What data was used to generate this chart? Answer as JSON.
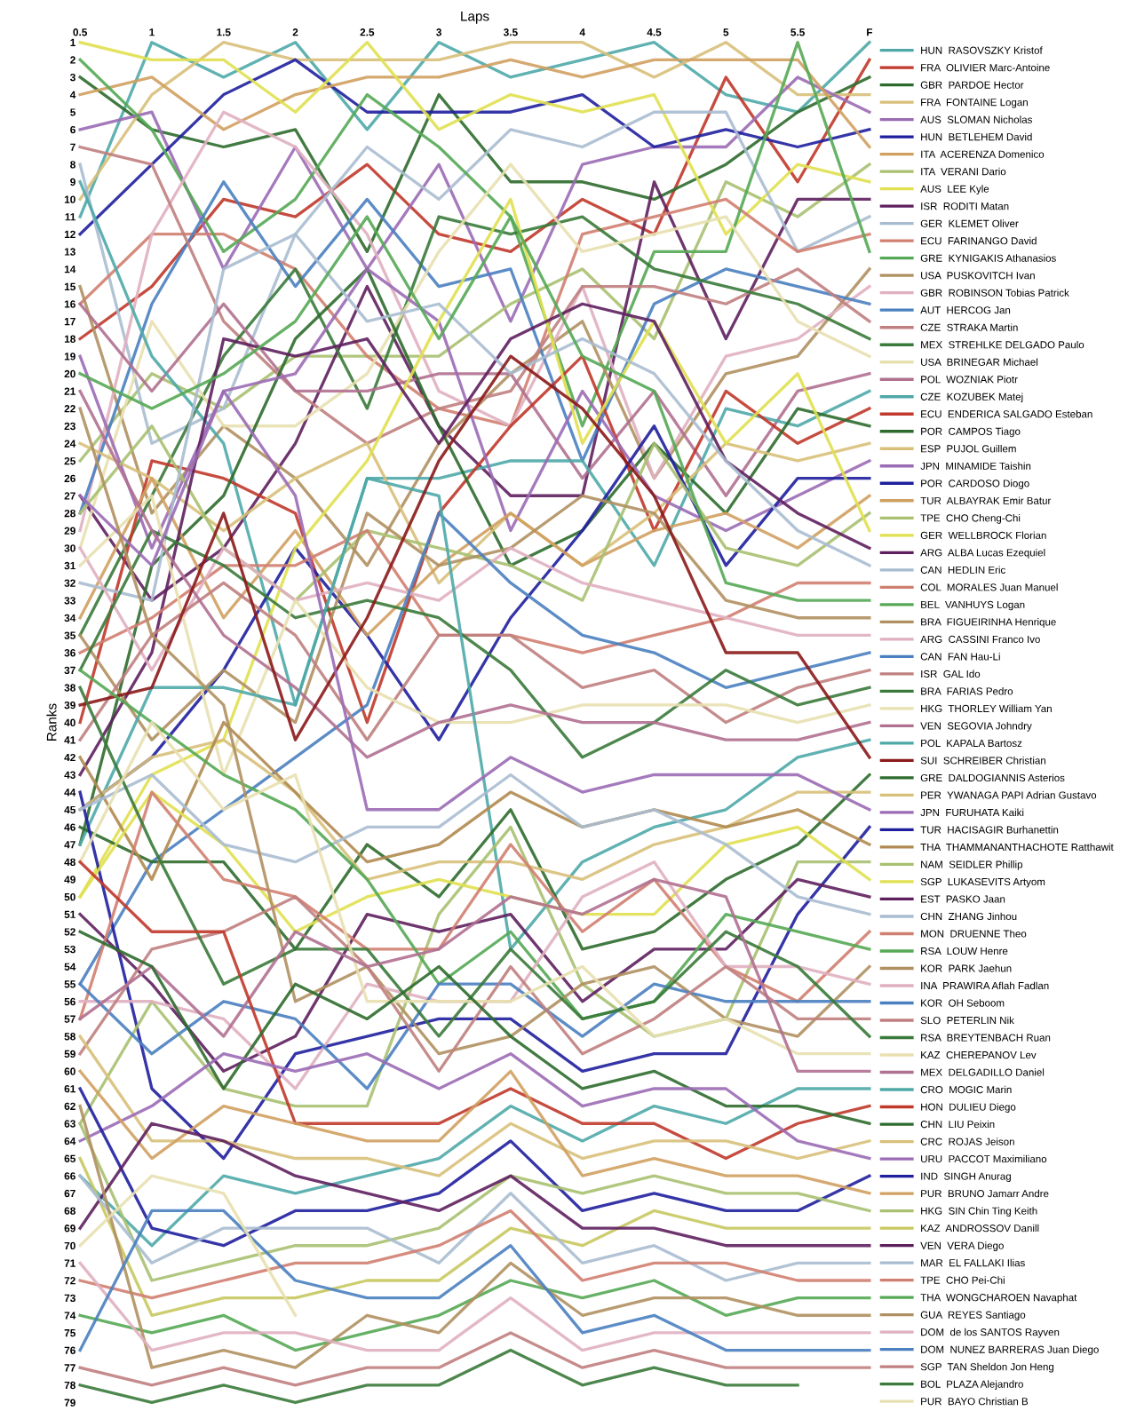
{
  "chart_data": {
    "type": "line",
    "xlabel": "Laps",
    "ylabel": "Ranks",
    "x": [
      0.5,
      1,
      1.5,
      2,
      2.5,
      3,
      3.5,
      4,
      4.5,
      5,
      5.5,
      6
    ],
    "xlim": [
      0.5,
      6
    ],
    "xticks": [
      0.5,
      1,
      1.5,
      2,
      2.5,
      3,
      3.5,
      4,
      4.5,
      5,
      5.5,
      {
        "value": 6,
        "label": "F"
      }
    ],
    "ylim": [
      79,
      1
    ],
    "yticks": [
      1,
      2,
      3,
      4,
      5,
      6,
      7,
      8,
      9,
      10,
      11,
      12,
      13,
      14,
      15,
      16,
      17,
      18,
      19,
      20,
      21,
      22,
      23,
      24,
      25,
      26,
      27,
      28,
      29,
      30,
      31,
      32,
      33,
      34,
      35,
      36,
      37,
      38,
      39,
      40,
      41,
      42,
      43,
      44,
      45,
      46,
      47,
      48,
      49,
      50,
      51,
      52,
      53,
      54,
      55,
      56,
      57,
      58,
      59,
      60,
      61,
      62,
      63,
      64,
      65,
      66,
      67,
      68,
      69,
      70,
      71,
      72,
      73,
      74,
      75,
      76,
      77,
      78,
      79
    ],
    "grid": false,
    "legend": "right",
    "marker": "none",
    "line_style": "solid",
    "series": [
      {
        "name": "HUN  RASOVSZKY Kristof",
        "color": "#4fa8a8",
        "values": [
          11,
          1,
          3,
          1,
          6,
          1,
          3,
          2,
          1,
          4,
          5,
          1
        ]
      },
      {
        "name": "FRA  OLIVIER Marc-Antoine",
        "color": "#c0392b",
        "values": [
          18,
          15,
          10,
          11,
          8,
          12,
          13,
          10,
          12,
          3,
          9,
          2
        ]
      },
      {
        "name": "GBR  PARDOE Hector",
        "color": "#2e6b2e",
        "values": [
          3,
          6,
          7,
          6,
          13,
          4,
          9,
          9,
          10,
          8,
          5,
          3
        ]
      },
      {
        "name": "FRA  FONTAINE Logan",
        "color": "#d8c07a",
        "values": [
          10,
          4,
          1,
          2,
          2,
          2,
          1,
          1,
          3,
          1,
          4,
          4
        ]
      },
      {
        "name": "AUS  SLOMAN Nicholas",
        "color": "#9b6bb5",
        "values": [
          6,
          5,
          14,
          7,
          14,
          8,
          17,
          8,
          7,
          7,
          3,
          5
        ]
      },
      {
        "name": "HUN  BETLEHEM David",
        "color": "#1f1f9e",
        "values": [
          12,
          8,
          4,
          2,
          5,
          5,
          5,
          4,
          7,
          6,
          7,
          6
        ]
      },
      {
        "name": "ITA  ACERENZA Domenico",
        "color": "#d0a060",
        "values": [
          4,
          3,
          6,
          4,
          3,
          3,
          2,
          3,
          2,
          2,
          2,
          7
        ]
      },
      {
        "name": "ITA  VERANI Dario",
        "color": "#a8c070",
        "values": [
          25,
          20,
          22,
          19,
          19,
          19,
          16,
          14,
          18,
          9,
          11,
          8
        ]
      },
      {
        "name": "AUS  LEE Kyle",
        "color": "#e0e050",
        "values": [
          1,
          2,
          2,
          5,
          1,
          6,
          4,
          5,
          4,
          12,
          8,
          9
        ]
      },
      {
        "name": "ISR  RODITI Matan",
        "color": "#5e1f5e",
        "values": [
          27,
          33,
          30,
          24,
          15,
          23,
          27,
          27,
          9,
          18,
          10,
          10
        ]
      },
      {
        "name": "GER  KLEMET Oliver",
        "color": "#a8bcd0",
        "values": [
          8,
          24,
          22,
          12,
          7,
          10,
          6,
          7,
          5,
          5,
          13,
          11
        ]
      },
      {
        "name": "ECU  FARINANGO David",
        "color": "#d08070",
        "values": [
          16,
          12,
          12,
          14,
          19,
          22,
          23,
          12,
          11,
          10,
          13,
          12
        ]
      },
      {
        "name": "GRE  KYNIGAKIS Athanasios",
        "color": "#55a855",
        "values": [
          2,
          6,
          13,
          10,
          4,
          7,
          11,
          23,
          13,
          13,
          1,
          13
        ]
      },
      {
        "name": "USA  PUSKOVITCH Ivan",
        "color": "#b09060",
        "values": [
          15,
          28,
          23,
          26,
          31,
          24,
          20,
          17,
          26,
          20,
          19,
          14
        ]
      },
      {
        "name": "GBR  ROBINSON Tobias Patrick",
        "color": "#e0b0c0",
        "values": [
          29,
          12,
          5,
          7,
          12,
          21,
          23,
          15,
          26,
          19,
          18,
          15
        ]
      },
      {
        "name": "AUT  HERCOG Jan",
        "color": "#4a80c0",
        "values": [
          28,
          16,
          9,
          15,
          10,
          15,
          14,
          25,
          16,
          14,
          15,
          16
        ]
      },
      {
        "name": "CZE  STRAKA Martin",
        "color": "#c08080",
        "values": [
          7,
          8,
          17,
          21,
          24,
          22,
          21,
          15,
          15,
          16,
          14,
          17
        ]
      },
      {
        "name": "MEX  STREHLKE DELGADO Paulo",
        "color": "#3a7a3a",
        "values": [
          35,
          27,
          19,
          14,
          22,
          11,
          12,
          11,
          14,
          15,
          16,
          18
        ]
      },
      {
        "name": "USA  BRINEGAR Michael",
        "color": "#e8e0b0",
        "values": [
          30,
          17,
          23,
          23,
          20,
          13,
          8,
          13,
          12,
          11,
          17,
          19
        ]
      },
      {
        "name": "POL  WOZNIAK Piotr",
        "color": "#b07090",
        "values": [
          16,
          21,
          16,
          21,
          21,
          20,
          20,
          26,
          21,
          27,
          21,
          20
        ]
      },
      {
        "name": "CZE  KOZUBEK Matej",
        "color": "#4fa8a8",
        "values": [
          9,
          19,
          24,
          39,
          26,
          26,
          25,
          25,
          31,
          22,
          23,
          21
        ]
      },
      {
        "name": "ECU  ENDERICA SALGADO Esteban",
        "color": "#c0392b",
        "values": [
          40,
          25,
          26,
          28,
          40,
          28,
          23,
          19,
          29,
          21,
          24,
          22
        ]
      },
      {
        "name": "POR  CAMPOS Tiago",
        "color": "#2e6b2e",
        "values": [
          47,
          31,
          27,
          18,
          14,
          23,
          31,
          29,
          24,
          28,
          22,
          23
        ]
      },
      {
        "name": "ESP  PUJOL Guillem",
        "color": "#d8c07a",
        "values": [
          24,
          26,
          29,
          26,
          24,
          32,
          28,
          31,
          28,
          24,
          25,
          24
        ]
      },
      {
        "name": "JPN  MINAMIDE Taishin",
        "color": "#9b6bb5",
        "values": [
          19,
          30,
          21,
          20,
          14,
          17,
          29,
          21,
          27,
          29,
          27,
          25
        ]
      },
      {
        "name": "POR  CARDOSO Diogo",
        "color": "#1f1f9e",
        "values": [
          45,
          42,
          37,
          30,
          35,
          41,
          34,
          29,
          23,
          31,
          26,
          26
        ]
      },
      {
        "name": "TUR  ALBAYRAK Emir Batur",
        "color": "#d0a060",
        "values": [
          34,
          26,
          34,
          29,
          35,
          31,
          28,
          31,
          29,
          28,
          30,
          27
        ]
      },
      {
        "name": "TPE  CHO Cheng-Chi",
        "color": "#a8c070",
        "values": [
          28,
          23,
          30,
          33,
          29,
          30,
          31,
          33,
          24,
          30,
          31,
          28
        ]
      },
      {
        "name": "GER  WELLBROCK Florian",
        "color": "#e0e050",
        "values": [
          50,
          43,
          41,
          30,
          25,
          17,
          10,
          24,
          17,
          24,
          20,
          29
        ]
      },
      {
        "name": "ARG  ALBA Lucas Ezequiel",
        "color": "#5e1f5e",
        "values": [
          43,
          36,
          18,
          19,
          18,
          24,
          18,
          16,
          17,
          25,
          28,
          30
        ]
      },
      {
        "name": "CAN  HEDLIN Eric",
        "color": "#a8bcd0",
        "values": [
          32,
          33,
          14,
          12,
          17,
          16,
          20,
          18,
          20,
          25,
          29,
          31
        ]
      },
      {
        "name": "COL  MORALES Juan Manuel",
        "color": "#d08070",
        "values": [
          36,
          34,
          31,
          31,
          29,
          35,
          35,
          36,
          35,
          34,
          32,
          32
        ]
      },
      {
        "name": "BEL  VANHUYS Logan",
        "color": "#55a855",
        "values": [
          20,
          22,
          20,
          17,
          11,
          18,
          11,
          19,
          21,
          32,
          33,
          33
        ]
      },
      {
        "name": "BRA  FIGUEIRINHA Henrique",
        "color": "#b09060",
        "values": [
          35,
          41,
          37,
          40,
          28,
          31,
          30,
          27,
          28,
          33,
          34,
          34
        ]
      },
      {
        "name": "ARG  CASSINI Franco Ivo",
        "color": "#e0b0c0",
        "values": [
          30,
          37,
          30,
          33,
          32,
          33,
          30,
          32,
          33,
          34,
          35,
          35
        ]
      },
      {
        "name": "CAN  FAN Hau-Li",
        "color": "#4a80c0",
        "values": [
          55,
          48,
          45,
          42,
          39,
          28,
          32,
          35,
          36,
          38,
          37,
          36
        ]
      },
      {
        "name": "ISR  GAL Ido",
        "color": "#c08080",
        "values": [
          41,
          35,
          32,
          35,
          41,
          35,
          35,
          38,
          37,
          40,
          38,
          37
        ]
      },
      {
        "name": "BRA  FARIAS Pedro",
        "color": "#3a7a3a",
        "values": [
          37,
          29,
          31,
          34,
          33,
          34,
          37,
          42,
          40,
          37,
          39,
          38
        ]
      },
      {
        "name": "HKG  THORLEY William Yan",
        "color": "#e8e0b0",
        "values": [
          31,
          27,
          43,
          33,
          38,
          40,
          40,
          39,
          39,
          39,
          40,
          39
        ]
      },
      {
        "name": "VEN  SEGOVIA Johndry",
        "color": "#b07090",
        "values": [
          21,
          29,
          35,
          38,
          42,
          40,
          39,
          40,
          40,
          41,
          41,
          40
        ]
      },
      {
        "name": "POL  KAPALA Bartosz",
        "color": "#4fa8a8",
        "values": [
          47,
          38,
          38,
          39,
          26,
          27,
          53,
          48,
          46,
          45,
          42,
          41
        ]
      },
      {
        "name": "SUI  SCHREIBER Christian",
        "color": "#8b1a1a",
        "values": [
          39,
          38,
          28,
          41,
          34,
          25,
          19,
          22,
          27,
          36,
          36,
          42
        ]
      },
      {
        "name": "GRE  DALDOGIANNIS Asterios",
        "color": "#2e6b2e",
        "values": [
          46,
          48,
          48,
          53,
          47,
          50,
          45,
          53,
          52,
          49,
          47,
          43
        ]
      },
      {
        "name": "PER  YWANAGA PAPI Adrian Gustavo",
        "color": "#d8c07a",
        "values": [
          45,
          42,
          41,
          44,
          49,
          48,
          48,
          49,
          47,
          46,
          44,
          44
        ]
      },
      {
        "name": "JPN  FURUHATA Kaiki",
        "color": "#9b6bb5",
        "values": [
          27,
          31,
          21,
          27,
          45,
          45,
          42,
          44,
          43,
          43,
          43,
          45
        ]
      },
      {
        "name": "TUR  HACISAGIR Burhanettin",
        "color": "#1f1f9e",
        "values": [
          44,
          61,
          65,
          59,
          58,
          57,
          57,
          60,
          59,
          59,
          51,
          46
        ]
      },
      {
        "name": "THA  THAMMANANTHACHOTE Ratthawit",
        "color": "#b08a50",
        "values": [
          42,
          49,
          40,
          44,
          48,
          47,
          44,
          46,
          45,
          46,
          45,
          47
        ]
      },
      {
        "name": "NAM  SEIDLER Phillip",
        "color": "#a8c070",
        "values": [
          63,
          56,
          61,
          62,
          62,
          51,
          46,
          55,
          58,
          57,
          48,
          48
        ]
      },
      {
        "name": "SGP  LUKASEVITS Artyom",
        "color": "#e0e050",
        "values": [
          50,
          44,
          47,
          52,
          50,
          49,
          50,
          51,
          51,
          47,
          46,
          49
        ]
      },
      {
        "name": "EST  PASKO Jaan",
        "color": "#5e1f5e",
        "values": [
          51,
          55,
          60,
          58,
          51,
          52,
          51,
          56,
          53,
          53,
          49,
          50
        ]
      },
      {
        "name": "CHN  ZHANG Jinhou",
        "color": "#a8bcd0",
        "values": [
          45,
          43,
          47,
          48,
          46,
          46,
          43,
          46,
          45,
          47,
          50,
          51
        ]
      },
      {
        "name": "MON  DRUENNE Theo",
        "color": "#d08070",
        "values": [
          57,
          44,
          49,
          50,
          53,
          53,
          47,
          52,
          49,
          54,
          56,
          52
        ]
      },
      {
        "name": "RSA  LOUW Henre",
        "color": "#55a855",
        "values": [
          37,
          40,
          43,
          45,
          49,
          55,
          52,
          57,
          56,
          51,
          52,
          53
        ]
      },
      {
        "name": "KOR  PARK Jaehun",
        "color": "#b09060",
        "values": [
          22,
          35,
          39,
          56,
          54,
          59,
          58,
          55,
          54,
          57,
          58,
          54
        ]
      },
      {
        "name": "INA  PRAWIRA Aflah Fadlan",
        "color": "#e0b0c0",
        "values": [
          56,
          56,
          57,
          61,
          55,
          56,
          56,
          50,
          48,
          54,
          54,
          55
        ]
      },
      {
        "name": "KOR  OH Seboom",
        "color": "#4a80c0",
        "values": [
          55,
          59,
          56,
          57,
          61,
          55,
          55,
          58,
          55,
          56,
          56,
          56
        ]
      },
      {
        "name": "SLO  PETERLIN Nik",
        "color": "#c08080",
        "values": [
          59,
          53,
          52,
          50,
          54,
          60,
          54,
          59,
          57,
          54,
          57,
          57
        ]
      },
      {
        "name": "RSA  BREYTENBACH Ruan",
        "color": "#3a7a3a",
        "values": [
          38,
          47,
          55,
          53,
          53,
          58,
          53,
          57,
          56,
          52,
          54,
          58
        ]
      },
      {
        "name": "KAZ  CHEREPANOV Lev",
        "color": "#e8e0b0",
        "values": [
          48,
          40,
          45,
          43,
          56,
          56,
          56,
          54,
          58,
          57,
          59,
          59
        ]
      },
      {
        "name": "MEX  DELGADILLO Daniel",
        "color": "#b07090",
        "values": [
          57,
          54,
          58,
          52,
          54,
          53,
          50,
          51,
          49,
          50,
          60,
          60
        ]
      },
      {
        "name": "CRO  MOGIC Marin",
        "color": "#4fa8a8",
        "values": [
          66,
          70,
          66,
          67,
          66,
          65,
          62,
          64,
          62,
          63,
          61,
          61
        ]
      },
      {
        "name": "HON  DULIEU Diego",
        "color": "#c0392b",
        "values": [
          48,
          52,
          52,
          63,
          63,
          63,
          61,
          63,
          63,
          65,
          63,
          62
        ]
      },
      {
        "name": "CHN  LIU Peixin",
        "color": "#2e6b2e",
        "values": [
          52,
          54,
          61,
          55,
          57,
          54,
          58,
          61,
          60,
          62,
          62,
          63
        ]
      },
      {
        "name": "CRC  ROJAS Jeison",
        "color": "#d8c07a",
        "values": [
          58,
          64,
          64,
          65,
          65,
          66,
          63,
          65,
          64,
          64,
          65,
          64
        ]
      },
      {
        "name": "URU  PACCOT Maximiliano",
        "color": "#9b6bb5",
        "values": [
          64,
          62,
          59,
          60,
          59,
          61,
          59,
          62,
          61,
          61,
          64,
          65
        ]
      },
      {
        "name": "IND  SINGH Anurag",
        "color": "#1f1f9e",
        "values": [
          61,
          69,
          70,
          68,
          68,
          67,
          64,
          68,
          67,
          68,
          68,
          66
        ]
      },
      {
        "name": "PUR  BRUNO Jamarr Andre",
        "color": "#d0a060",
        "values": [
          60,
          65,
          62,
          63,
          64,
          64,
          60,
          66,
          65,
          66,
          66,
          67
        ]
      },
      {
        "name": "HKG  SIN Chin Ting Keith",
        "color": "#a8c070",
        "values": [
          63,
          72,
          71,
          70,
          70,
          69,
          66,
          67,
          66,
          67,
          67,
          68
        ]
      },
      {
        "name": "KAZ  ANDROSSOV Danill",
        "color": "#c8c860",
        "values": [
          65,
          74,
          73,
          73,
          72,
          72,
          69,
          70,
          68,
          69,
          69,
          69
        ]
      },
      {
        "name": "VEN  VERA Diego",
        "color": "#5e1f5e",
        "values": [
          69,
          63,
          64,
          66,
          67,
          68,
          66,
          69,
          69,
          70,
          70,
          70
        ]
      },
      {
        "name": "MAR  EL FALLAKI Ilias",
        "color": "#a8bcd0",
        "values": [
          66,
          71,
          69,
          69,
          69,
          71,
          67,
          71,
          70,
          72,
          71,
          71
        ]
      },
      {
        "name": "TPE  CHO Pei-Chi",
        "color": "#d08070",
        "values": [
          72,
          73,
          72,
          71,
          71,
          70,
          68,
          72,
          71,
          71,
          72,
          72
        ]
      },
      {
        "name": "THA  WONGCHAROEN Navaphat",
        "color": "#55a855",
        "values": [
          74,
          75,
          74,
          76,
          75,
          74,
          72,
          73,
          72,
          74,
          73,
          73
        ]
      },
      {
        "name": "GUA  REYES Santiago",
        "color": "#b09060",
        "values": [
          62,
          77,
          76,
          77,
          74,
          75,
          71,
          74,
          73,
          73,
          74,
          74
        ]
      },
      {
        "name": "DOM  de los SANTOS Rayven",
        "color": "#e0b0c0",
        "values": [
          71,
          76,
          75,
          75,
          76,
          76,
          73,
          76,
          75,
          75,
          75,
          75
        ]
      },
      {
        "name": "DOM  NUNEZ BARRERAS Juan Diego",
        "color": "#4a80c0",
        "values": [
          76,
          68,
          68,
          72,
          73,
          73,
          70,
          75,
          74,
          76,
          76,
          76
        ]
      },
      {
        "name": "SGP  TAN Sheldon Jon Heng",
        "color": "#c08080",
        "values": [
          77,
          78,
          77,
          78,
          77,
          77,
          75,
          77,
          76,
          77,
          77,
          77
        ]
      },
      {
        "name": "BOL  PLAZA Alejandro",
        "color": "#3a7a3a",
        "values": [
          78,
          79,
          78,
          79,
          78,
          78,
          76,
          78,
          77,
          78,
          78,
          null
        ]
      },
      {
        "name": "PUR  BAYO Christian B",
        "color": "#e8e0b0",
        "values": [
          70,
          66,
          67,
          74,
          null,
          null,
          null,
          null,
          null,
          null,
          null,
          null
        ]
      }
    ]
  }
}
